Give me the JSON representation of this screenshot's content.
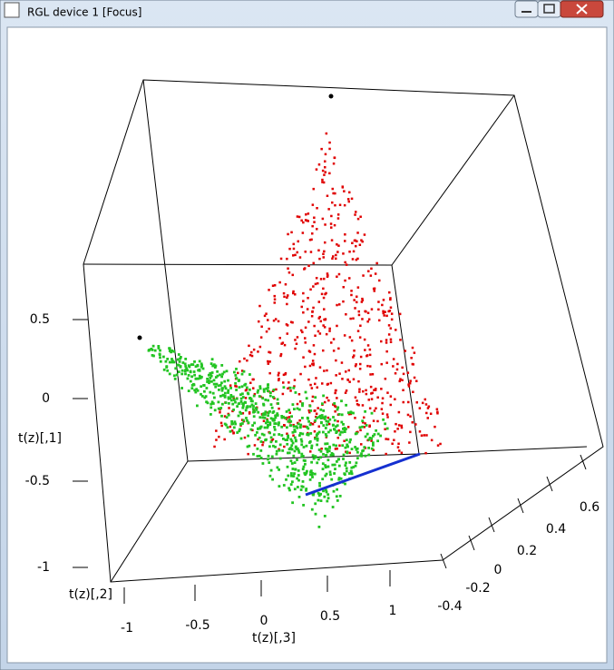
{
  "window": {
    "title": "RGL device 1 [Focus]"
  },
  "axes": {
    "vertical": {
      "label": "t(z)[,1]",
      "ticks": [
        "0.5",
        "0",
        "-0.5",
        "-1"
      ]
    },
    "front": {
      "label": "t(z)[,3]",
      "ticks": [
        "-1",
        "-0.5",
        "0",
        "0.5",
        "1"
      ]
    },
    "side": {
      "label": "t(z)[,2]",
      "ticks": [
        "-0.4",
        "-0.2",
        "0",
        "0.2",
        "0.4",
        "0.6"
      ]
    }
  }
}
